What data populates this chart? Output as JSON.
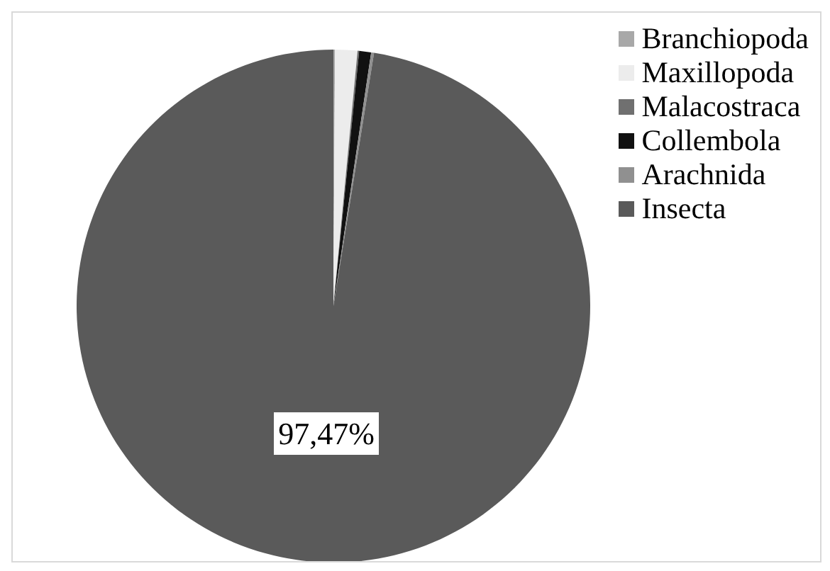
{
  "chart_data": {
    "type": "pie",
    "categories": [
      "Branchiopoda",
      "Maxillopoda",
      "Malacostraca",
      "Collembola",
      "Arachnida",
      "Insecta"
    ],
    "values": [
      0.1,
      1.4,
      0.1,
      0.75,
      0.18,
      97.47
    ],
    "colors": [
      "#a8a8a8",
      "#ececec",
      "#707070",
      "#111111",
      "#909090",
      "#5a5a5a"
    ],
    "value_labels": [
      null,
      null,
      null,
      null,
      null,
      "97,47%"
    ],
    "legend": "right"
  }
}
